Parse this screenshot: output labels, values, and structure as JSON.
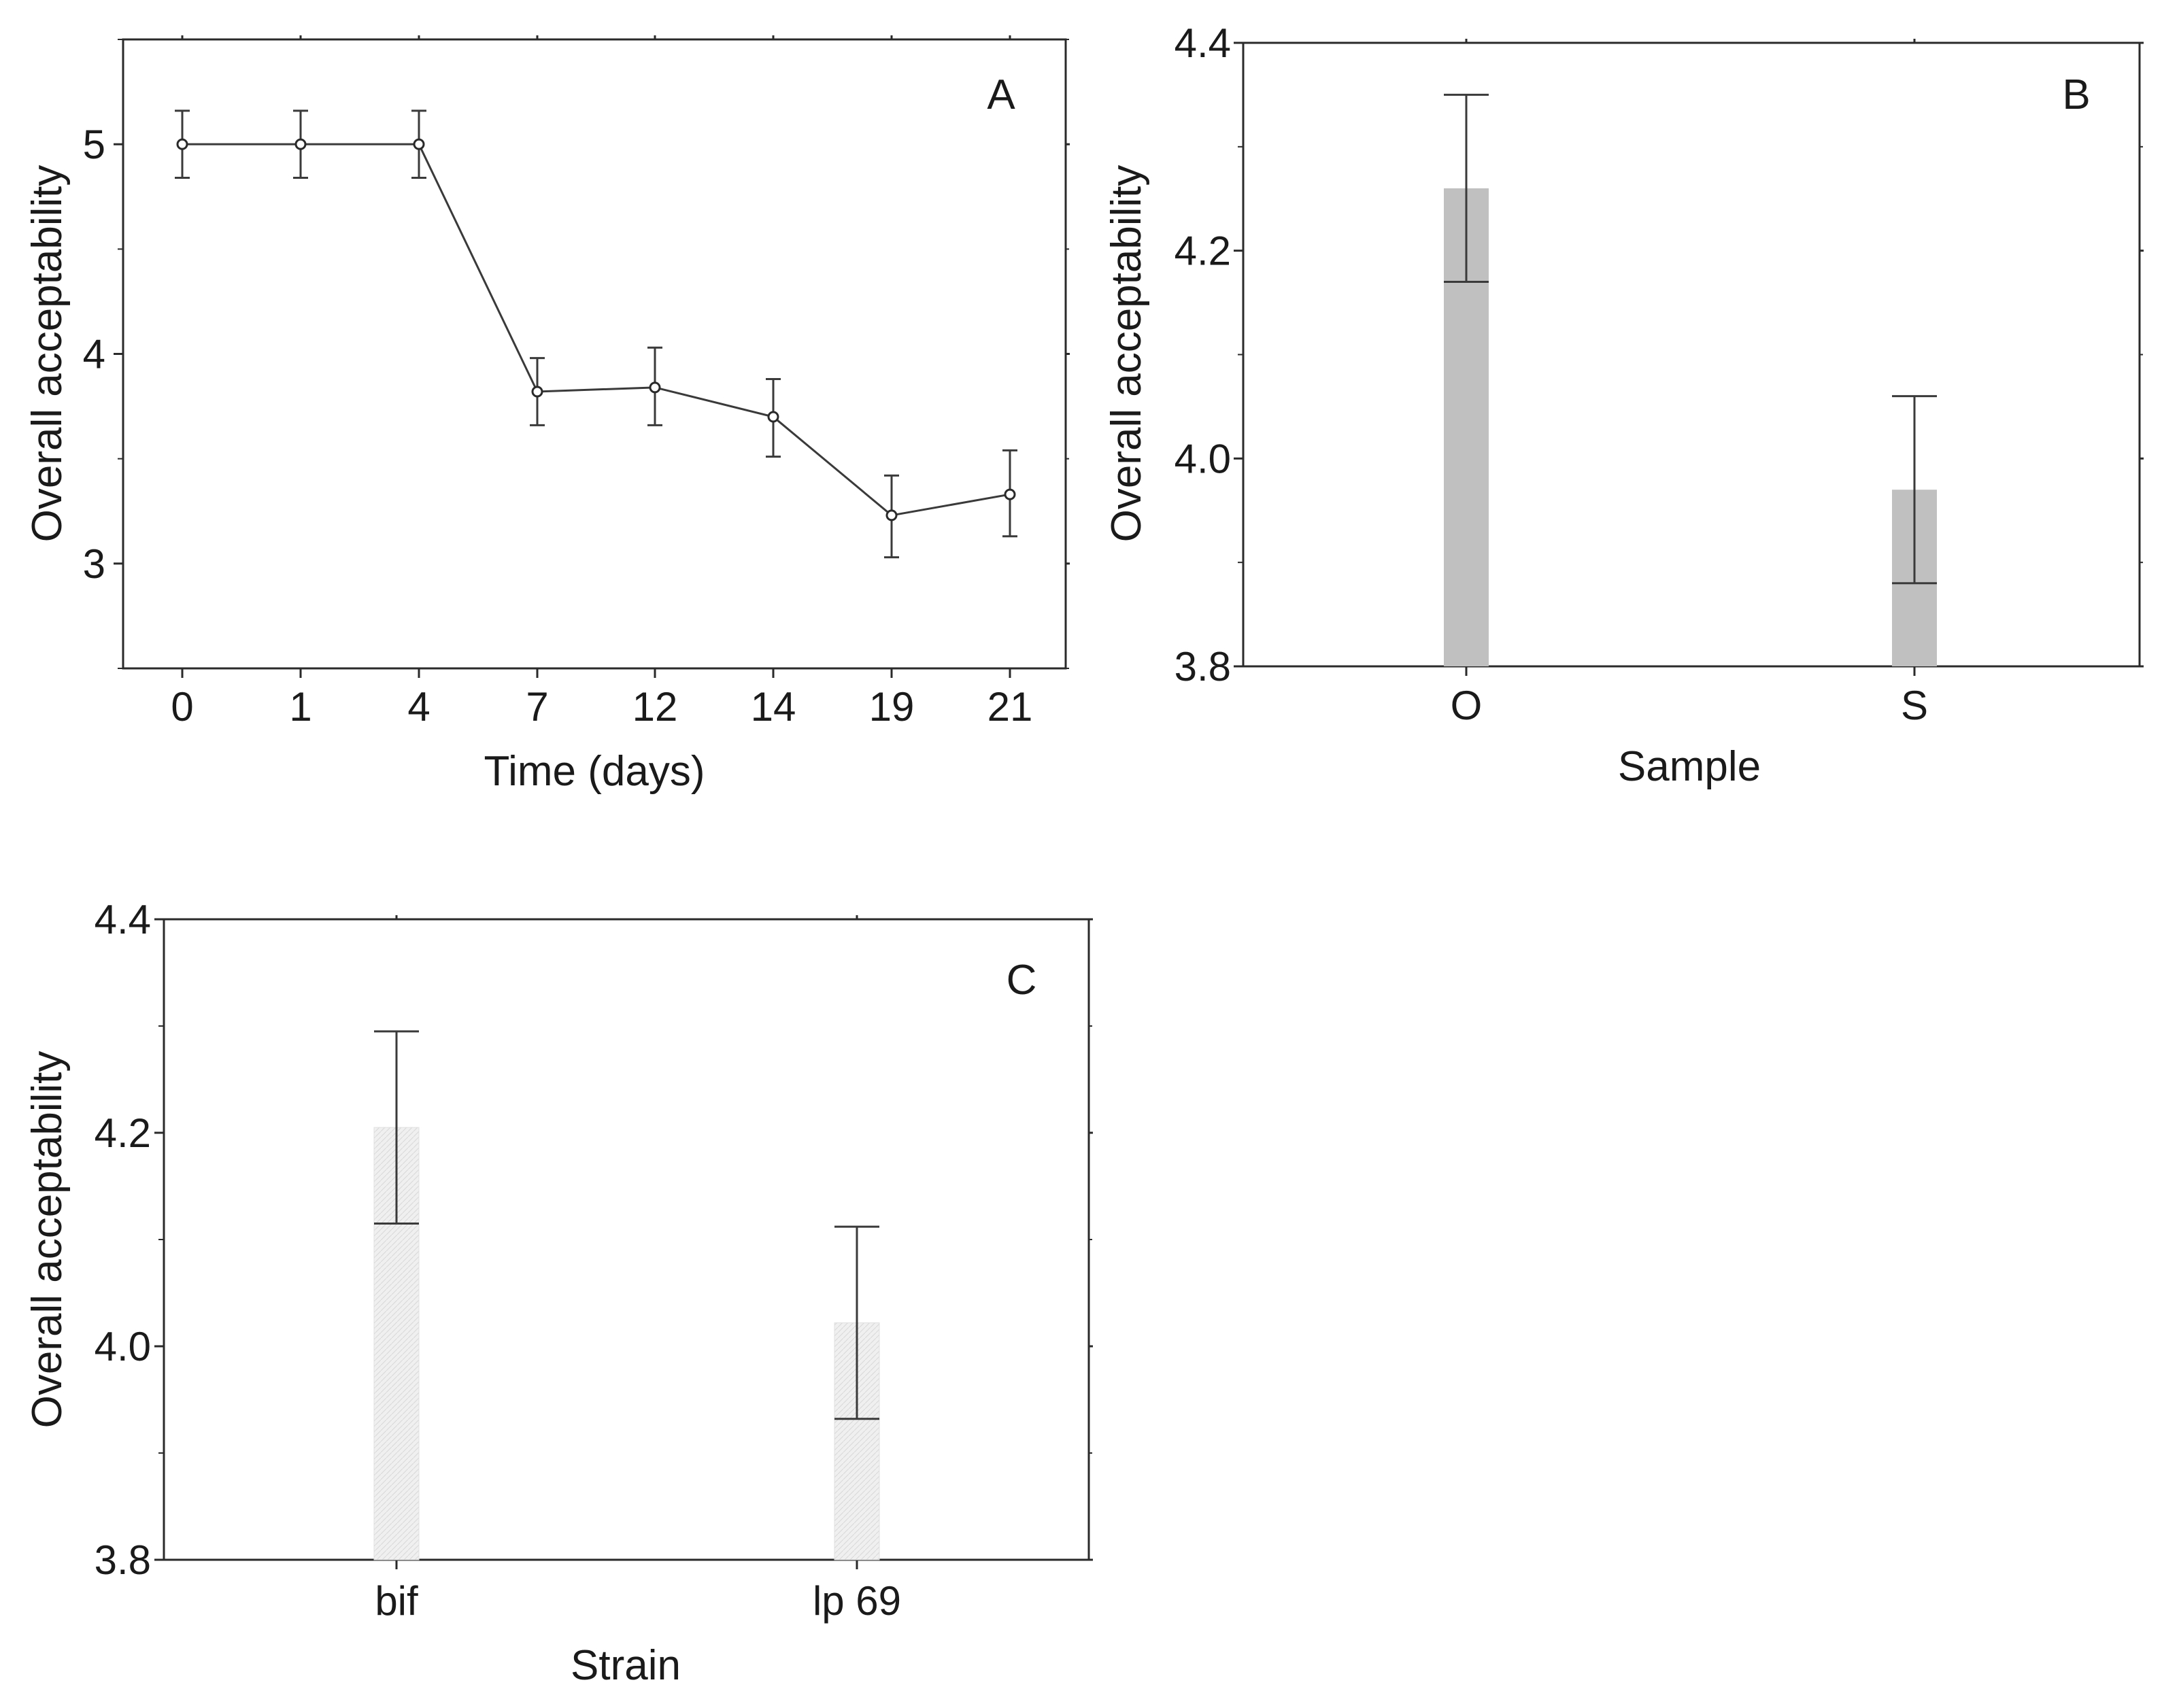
{
  "chart_data": [
    {
      "panel": "A",
      "type": "line",
      "xlabel": "Time (days)",
      "ylabel": "Overall acceptability",
      "categories": [
        "0",
        "1",
        "4",
        "7",
        "12",
        "14",
        "19",
        "21"
      ],
      "values": [
        5.0,
        5.0,
        5.0,
        3.82,
        3.84,
        3.7,
        3.23,
        3.33
      ],
      "err_low": [
        4.84,
        4.84,
        4.84,
        3.66,
        3.66,
        3.51,
        3.03,
        3.13
      ],
      "err_high": [
        5.16,
        5.16,
        5.16,
        3.98,
        4.03,
        3.88,
        3.42,
        3.54
      ],
      "ylim": [
        2.5,
        5.5
      ],
      "yticks": [
        3,
        4,
        5
      ],
      "ytick_labels": [
        "3",
        "4",
        "5"
      ],
      "grid": false
    },
    {
      "panel": "B",
      "type": "bar",
      "xlabel": "Sample",
      "ylabel": "Overall acceptability",
      "categories": [
        "O",
        "S"
      ],
      "values": [
        4.26,
        3.97
      ],
      "err_low": [
        4.17,
        3.88
      ],
      "err_high": [
        4.35,
        4.06
      ],
      "ylim": [
        3.8,
        4.4
      ],
      "yticks": [
        3.8,
        4.0,
        4.2,
        4.4
      ],
      "ytick_labels": [
        "3.8",
        "4.0",
        "4.2",
        "4.4"
      ],
      "bar_color": "#c0c0c0",
      "grid": false
    },
    {
      "panel": "C",
      "type": "bar",
      "xlabel": "Strain",
      "ylabel": "Overall acceptability",
      "categories": [
        "bif",
        "lp 69"
      ],
      "values": [
        4.205,
        4.022
      ],
      "err_low": [
        4.115,
        3.932
      ],
      "err_high": [
        4.295,
        4.112
      ],
      "ylim": [
        3.8,
        4.4
      ],
      "yticks": [
        3.8,
        4.0,
        4.2,
        4.4
      ],
      "ytick_labels": [
        "3.8",
        "4.0",
        "4.2",
        "4.4"
      ],
      "bar_color": "#ececec",
      "grid": false
    }
  ]
}
